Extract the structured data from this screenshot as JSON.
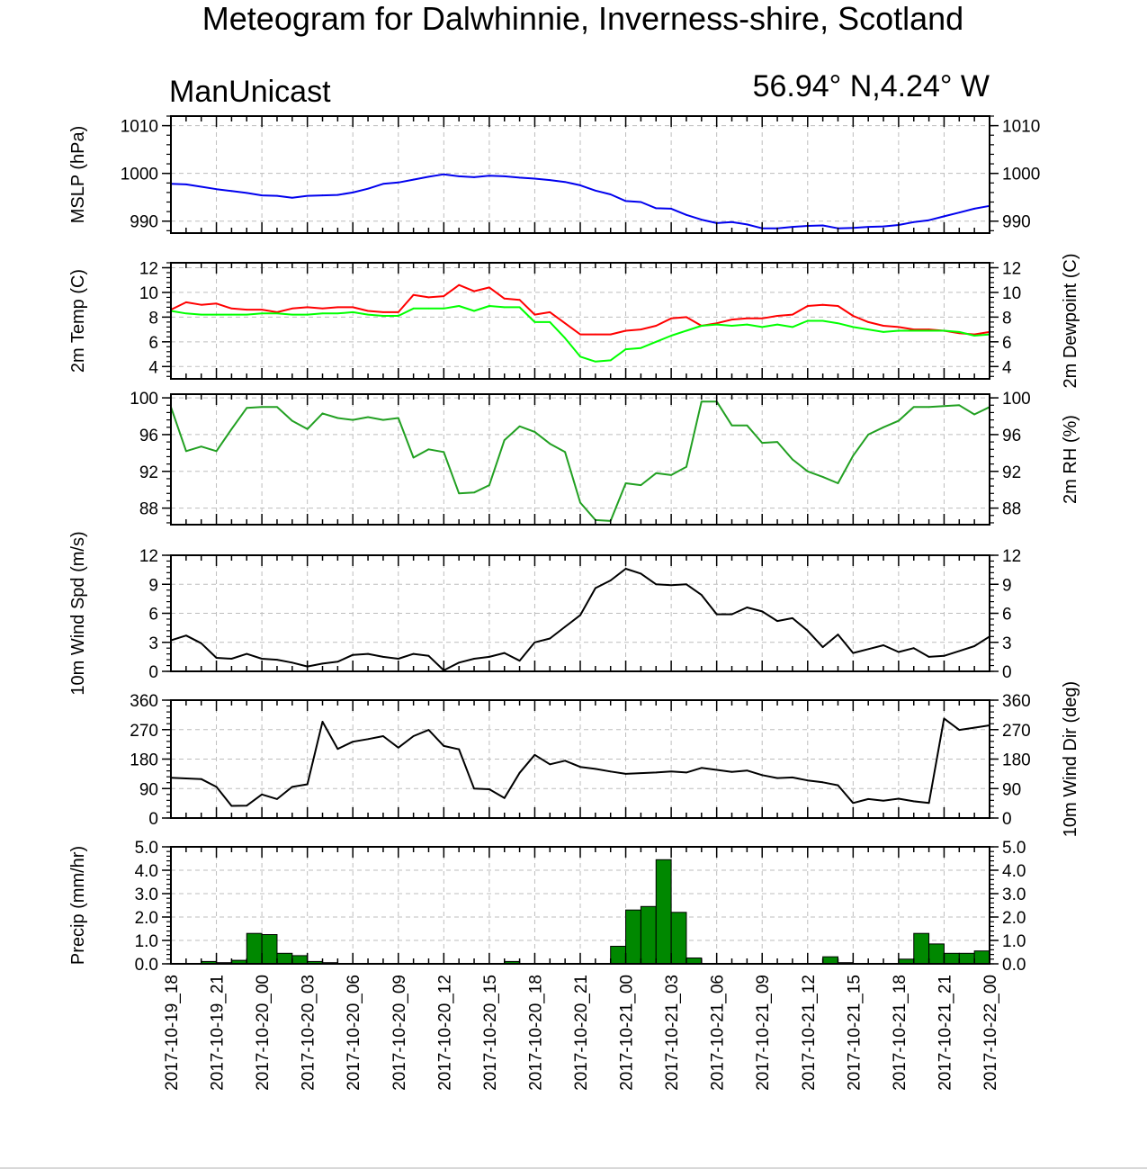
{
  "chart_data": {
    "title": "Meteogram for Dalwhinnie, Inverness-shire, Scotland",
    "model": "ManUnicast",
    "location": "56.94° N,4.24° W",
    "x_tick_labels": [
      "2017-10-19_18",
      "2017-10-19_21",
      "2017-10-20_00",
      "2017-10-20_03",
      "2017-10-20_06",
      "2017-10-20_09",
      "2017-10-20_12",
      "2017-10-20_15",
      "2017-10-20_18",
      "2017-10-20_21",
      "2017-10-21_00",
      "2017-10-21_03",
      "2017-10-21_06",
      "2017-10-21_09",
      "2017-10-21_12",
      "2017-10-21_15",
      "2017-10-21_18",
      "2017-10-21_21",
      "2017-10-22_00"
    ],
    "x_unit": "hours after 2017-10-19_18",
    "x_range": [
      0,
      54
    ],
    "panels": [
      {
        "id": "mslp",
        "type": "line",
        "left_label": "MSLP (hPa)",
        "right_label": "",
        "ylim": [
          987.5,
          1012
        ],
        "yticks": [
          990,
          1000,
          1010
        ],
        "tick_labels": [
          "990",
          "1000",
          "1010"
        ],
        "series": [
          {
            "name": "MSLP",
            "color": "#0000ee",
            "x": [
              0,
              1,
              2,
              3,
              4,
              5,
              6,
              7,
              8,
              9,
              10,
              11,
              12,
              13,
              14,
              15,
              16,
              17,
              18,
              19,
              20,
              21,
              22,
              23,
              24,
              25,
              26,
              27,
              28,
              29,
              30,
              31,
              32,
              33,
              34,
              35,
              36,
              37,
              38,
              39,
              40,
              41,
              42,
              43,
              44,
              45,
              46,
              47,
              48,
              49,
              50,
              51,
              52,
              53,
              54
            ],
            "values": [
              997.8,
              997.7,
              997.2,
              996.7,
              996.3,
              995.9,
              995.4,
              995.3,
              994.9,
              995.3,
              995.4,
              995.5,
              996.0,
              996.8,
              997.8,
              998.1,
              998.7,
              999.3,
              999.8,
              999.4,
              999.2,
              999.5,
              999.4,
              999.1,
              998.9,
              998.6,
              998.2,
              997.5,
              996.4,
              995.6,
              994.2,
              994.0,
              992.7,
              992.6,
              991.3,
              990.3,
              989.6,
              989.8,
              989.3,
              988.5,
              988.5,
              988.8,
              989.0,
              989.1,
              988.5,
              988.6,
              988.8,
              988.9,
              989.2,
              989.8,
              990.2,
              991.0,
              991.8,
              992.6,
              993.2
            ]
          }
        ]
      },
      {
        "id": "temp",
        "type": "line",
        "left_label": "2m Temp (C)",
        "right_label": "2m Dewpoint (C)",
        "ylim": [
          3,
          12.4
        ],
        "yticks": [
          4,
          6,
          8,
          10,
          12
        ],
        "tick_labels": [
          "4",
          "6",
          "8",
          "10",
          "12"
        ],
        "series": [
          {
            "name": "2m Temp",
            "color": "#ff0000",
            "x": [
              0,
              1,
              2,
              3,
              4,
              5,
              6,
              7,
              8,
              9,
              10,
              11,
              12,
              13,
              14,
              15,
              16,
              17,
              18,
              19,
              20,
              21,
              22,
              23,
              24,
              25,
              26,
              27,
              28,
              29,
              30,
              31,
              32,
              33,
              34,
              35,
              36,
              37,
              38,
              39,
              40,
              41,
              42,
              43,
              44,
              45,
              46,
              47,
              48,
              49,
              50,
              51,
              52,
              53,
              54
            ],
            "values": [
              8.6,
              9.2,
              9.0,
              9.1,
              8.7,
              8.6,
              8.6,
              8.4,
              8.7,
              8.8,
              8.7,
              8.8,
              8.8,
              8.5,
              8.4,
              8.4,
              9.8,
              9.6,
              9.7,
              10.6,
              10.1,
              10.4,
              9.5,
              9.4,
              8.2,
              8.4,
              7.5,
              6.6,
              6.6,
              6.6,
              6.9,
              7.0,
              7.3,
              7.9,
              8.0,
              7.3,
              7.5,
              7.8,
              7.9,
              7.9,
              8.1,
              8.2,
              8.9,
              9.0,
              8.9,
              8.1,
              7.6,
              7.3,
              7.2,
              7.0,
              7.0,
              6.9,
              6.7,
              6.6,
              6.8
            ]
          },
          {
            "name": "2m Dewpoint",
            "color": "#00ff00",
            "x": [
              0,
              1,
              2,
              3,
              4,
              5,
              6,
              7,
              8,
              9,
              10,
              11,
              12,
              13,
              14,
              15,
              16,
              17,
              18,
              19,
              20,
              21,
              22,
              23,
              24,
              25,
              26,
              27,
              28,
              29,
              30,
              31,
              32,
              33,
              34,
              35,
              36,
              37,
              38,
              39,
              40,
              41,
              42,
              43,
              44,
              45,
              46,
              47,
              48,
              49,
              50,
              51,
              52,
              53,
              54
            ],
            "values": [
              8.5,
              8.3,
              8.2,
              8.2,
              8.2,
              8.2,
              8.3,
              8.3,
              8.2,
              8.2,
              8.3,
              8.3,
              8.4,
              8.2,
              8.1,
              8.1,
              8.7,
              8.7,
              8.7,
              8.9,
              8.5,
              8.9,
              8.8,
              8.8,
              7.6,
              7.6,
              6.3,
              4.8,
              4.4,
              4.5,
              5.4,
              5.5,
              6.0,
              6.5,
              6.9,
              7.3,
              7.4,
              7.3,
              7.4,
              7.2,
              7.4,
              7.2,
              7.7,
              7.7,
              7.5,
              7.2,
              7.0,
              6.8,
              6.9,
              6.9,
              6.9,
              6.9,
              6.8,
              6.5,
              6.6
            ]
          }
        ]
      },
      {
        "id": "rh",
        "type": "line",
        "left_label": "",
        "right_label": "2m RH (%)",
        "ylim": [
          86.2,
          100.4
        ],
        "yticks": [
          88,
          92,
          96,
          100
        ],
        "tick_labels": [
          "88",
          "92",
          "96",
          "100"
        ],
        "series": [
          {
            "name": "2m RH",
            "color": "#22a022",
            "x": [
              0,
              1,
              2,
              3,
              4,
              5,
              6,
              7,
              8,
              9,
              10,
              11,
              12,
              13,
              14,
              15,
              16,
              17,
              18,
              19,
              20,
              21,
              22,
              23,
              24,
              25,
              26,
              27,
              28,
              29,
              30,
              31,
              32,
              33,
              34,
              35,
              36,
              37,
              38,
              39,
              40,
              41,
              42,
              43,
              44,
              45,
              46,
              47,
              48,
              49,
              50,
              51,
              52,
              53,
              54
            ],
            "values": [
              99.0,
              94.2,
              94.7,
              94.2,
              96.6,
              98.9,
              99.0,
              99.0,
              97.5,
              96.6,
              98.3,
              97.8,
              97.6,
              97.9,
              97.6,
              97.8,
              93.5,
              94.4,
              94.1,
              89.6,
              89.7,
              90.5,
              95.4,
              96.9,
              96.3,
              95.0,
              94.1,
              88.6,
              86.7,
              86.6,
              90.7,
              90.5,
              91.8,
              91.6,
              92.5,
              99.6,
              99.6,
              97.0,
              97.0,
              95.1,
              95.2,
              93.3,
              92.0,
              91.4,
              90.7,
              93.7,
              96.0,
              96.8,
              97.5,
              99.0,
              99.0,
              99.1,
              99.2,
              98.2,
              99.0
            ]
          }
        ]
      },
      {
        "id": "wspd",
        "type": "line",
        "left_label": "10m Wind Spd (m/s)",
        "right_label": "",
        "ylim": [
          0,
          12
        ],
        "yticks": [
          0,
          3,
          6,
          9,
          12
        ],
        "tick_labels": [
          "0",
          "3",
          "6",
          "9",
          "12"
        ],
        "series": [
          {
            "name": "10m Wind Spd",
            "color": "#000000",
            "x": [
              0,
              1,
              2,
              3,
              4,
              5,
              6,
              7,
              8,
              9,
              10,
              11,
              12,
              13,
              14,
              15,
              16,
              17,
              18,
              19,
              20,
              21,
              22,
              23,
              24,
              25,
              26,
              27,
              28,
              29,
              30,
              31,
              32,
              33,
              34,
              35,
              36,
              37,
              38,
              39,
              40,
              41,
              42,
              43,
              44,
              45,
              46,
              47,
              48,
              49,
              50,
              51,
              52,
              53,
              54
            ],
            "values": [
              3.2,
              3.7,
              2.9,
              1.4,
              1.3,
              1.8,
              1.3,
              1.2,
              0.9,
              0.5,
              0.8,
              1.0,
              1.7,
              1.8,
              1.5,
              1.3,
              1.8,
              1.6,
              0.1,
              0.9,
              1.3,
              1.5,
              1.9,
              1.1,
              3.0,
              3.4,
              4.6,
              5.8,
              8.6,
              9.4,
              10.6,
              10.1,
              9.0,
              8.9,
              9.0,
              7.9,
              5.9,
              5.9,
              6.6,
              6.2,
              5.2,
              5.5,
              4.2,
              2.5,
              3.8,
              1.9,
              2.3,
              2.7,
              2.0,
              2.4,
              1.5,
              1.6,
              2.1,
              2.6,
              3.6
            ]
          }
        ]
      },
      {
        "id": "wdir",
        "type": "line",
        "left_label": "",
        "right_label": "10m Wind Dir (deg)",
        "ylim": [
          0,
          360
        ],
        "yticks": [
          0,
          90,
          180,
          270,
          360
        ],
        "tick_labels": [
          "0",
          "90",
          "180",
          "270",
          "360"
        ],
        "series": [
          {
            "name": "10m Wind Dir",
            "color": "#000000",
            "x": [
              0,
              1,
              2,
              3,
              4,
              5,
              6,
              7,
              8,
              9,
              10,
              11,
              12,
              13,
              14,
              15,
              16,
              17,
              18,
              19,
              20,
              21,
              22,
              23,
              24,
              25,
              26,
              27,
              28,
              29,
              30,
              31,
              32,
              33,
              34,
              35,
              36,
              37,
              38,
              39,
              40,
              41,
              42,
              43,
              44,
              45,
              46,
              47,
              48,
              49,
              50,
              51,
              52,
              53,
              54
            ],
            "values": [
              123,
              121,
              119,
              95,
              37,
              38,
              72,
              58,
              95,
              103,
              294,
              211,
              233,
              241,
              250,
              215,
              250,
              269,
              220,
              210,
              90,
              88,
              61,
              138,
              193,
              164,
              175,
              156,
              150,
              142,
              135,
              137,
              139,
              142,
              139,
              153,
              147,
              141,
              145,
              131,
              122,
              124,
              115,
              109,
              100,
              46,
              58,
              53,
              59,
              51,
              46,
              304,
              269,
              276,
              283
            ]
          }
        ]
      },
      {
        "id": "precip",
        "type": "bar",
        "left_label": "Precip (mm/hr)",
        "right_label": "",
        "ylim": [
          0,
          5
        ],
        "yticks": [
          0,
          1,
          2,
          3,
          4,
          5
        ],
        "tick_labels": [
          "0.0",
          "1.0",
          "2.0",
          "3.0",
          "4.0",
          "5.0"
        ],
        "series": [
          {
            "name": "Precip",
            "color": "#008800",
            "x": [
              0.5,
              1.5,
              2.5,
              3.5,
              4.5,
              5.5,
              6.5,
              7.5,
              8.5,
              9.5,
              10.5,
              11.5,
              12.5,
              13.5,
              14.5,
              15.5,
              16.5,
              17.5,
              18.5,
              19.5,
              20.5,
              21.5,
              22.5,
              23.5,
              24.5,
              25.5,
              26.5,
              27.5,
              28.5,
              29.5,
              30.5,
              31.5,
              32.5,
              33.5,
              34.5,
              35.5,
              36.5,
              37.5,
              38.5,
              39.5,
              40.5,
              41.5,
              42.5,
              43.5,
              44.5,
              45.5,
              46.5,
              47.5,
              48.5,
              49.5,
              50.5,
              51.5,
              52.5,
              53.5
            ],
            "values": [
              0,
              0,
              0.1,
              0.05,
              0.15,
              1.3,
              1.25,
              0.45,
              0.35,
              0.1,
              0.05,
              0,
              0,
              0.02,
              0,
              0,
              0,
              0,
              0,
              0,
              0,
              0,
              0.1,
              0,
              0,
              0,
              0,
              0,
              0,
              0.75,
              2.3,
              2.45,
              4.45,
              2.2,
              0.25,
              0,
              0,
              0.02,
              0,
              0,
              0,
              0,
              0,
              0.3,
              0.05,
              0,
              0,
              0,
              0.2,
              1.3,
              0.85,
              0.45,
              0.45,
              0.55
            ]
          }
        ]
      }
    ]
  }
}
